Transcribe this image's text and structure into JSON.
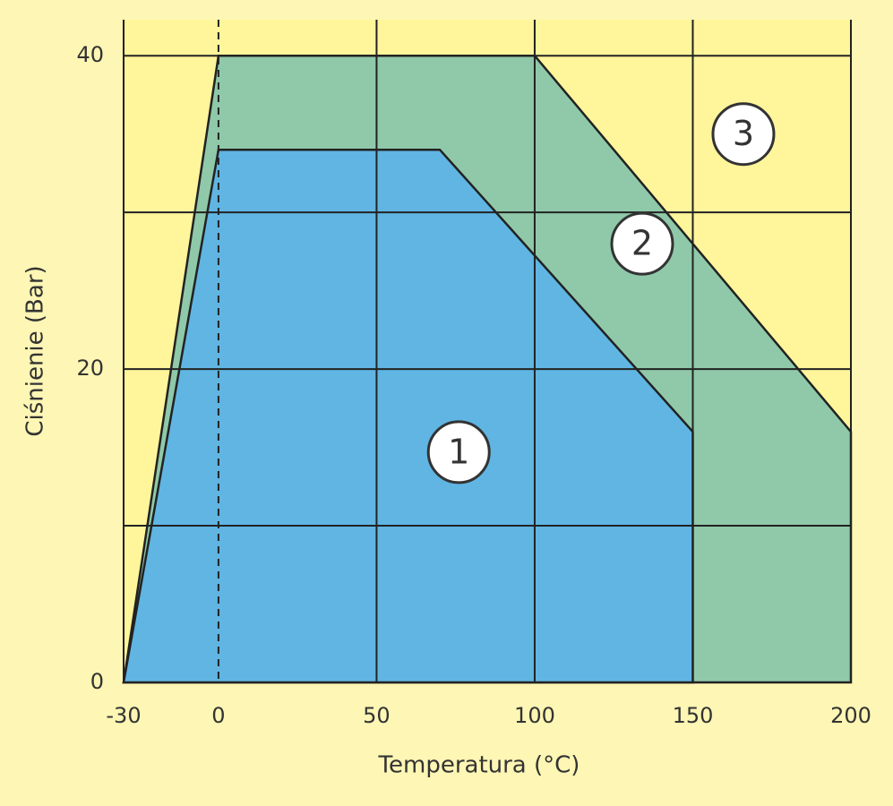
{
  "chart_data": {
    "type": "area",
    "xlabel": "Temperatura (°C)",
    "ylabel": "Ciśnienie (Bar)",
    "xlim": [
      -30,
      200
    ],
    "ylim": [
      0,
      42.3
    ],
    "xticks": [
      -30,
      0,
      50,
      100,
      150,
      200
    ],
    "yticks": [
      0,
      20,
      40
    ],
    "y_minor_ticks": [
      10,
      30
    ],
    "grid": true,
    "background_color": "#fff59b",
    "series": [
      {
        "color": "#8fc9a9",
        "x": [
          -30,
          0,
          100,
          200,
          200
        ],
        "values": [
          0,
          40,
          40,
          16,
          0
        ]
      },
      {
        "color": "#60b5e3",
        "x": [
          -30,
          0,
          70,
          150,
          150
        ],
        "values": [
          0,
          34,
          34,
          16,
          0
        ]
      }
    ],
    "annotations": [
      {
        "text": "1",
        "x": 76,
        "y": 14.7
      },
      {
        "text": "2",
        "x": 134,
        "y": 28
      },
      {
        "text": "3",
        "x": 166,
        "y": 35
      }
    ]
  }
}
